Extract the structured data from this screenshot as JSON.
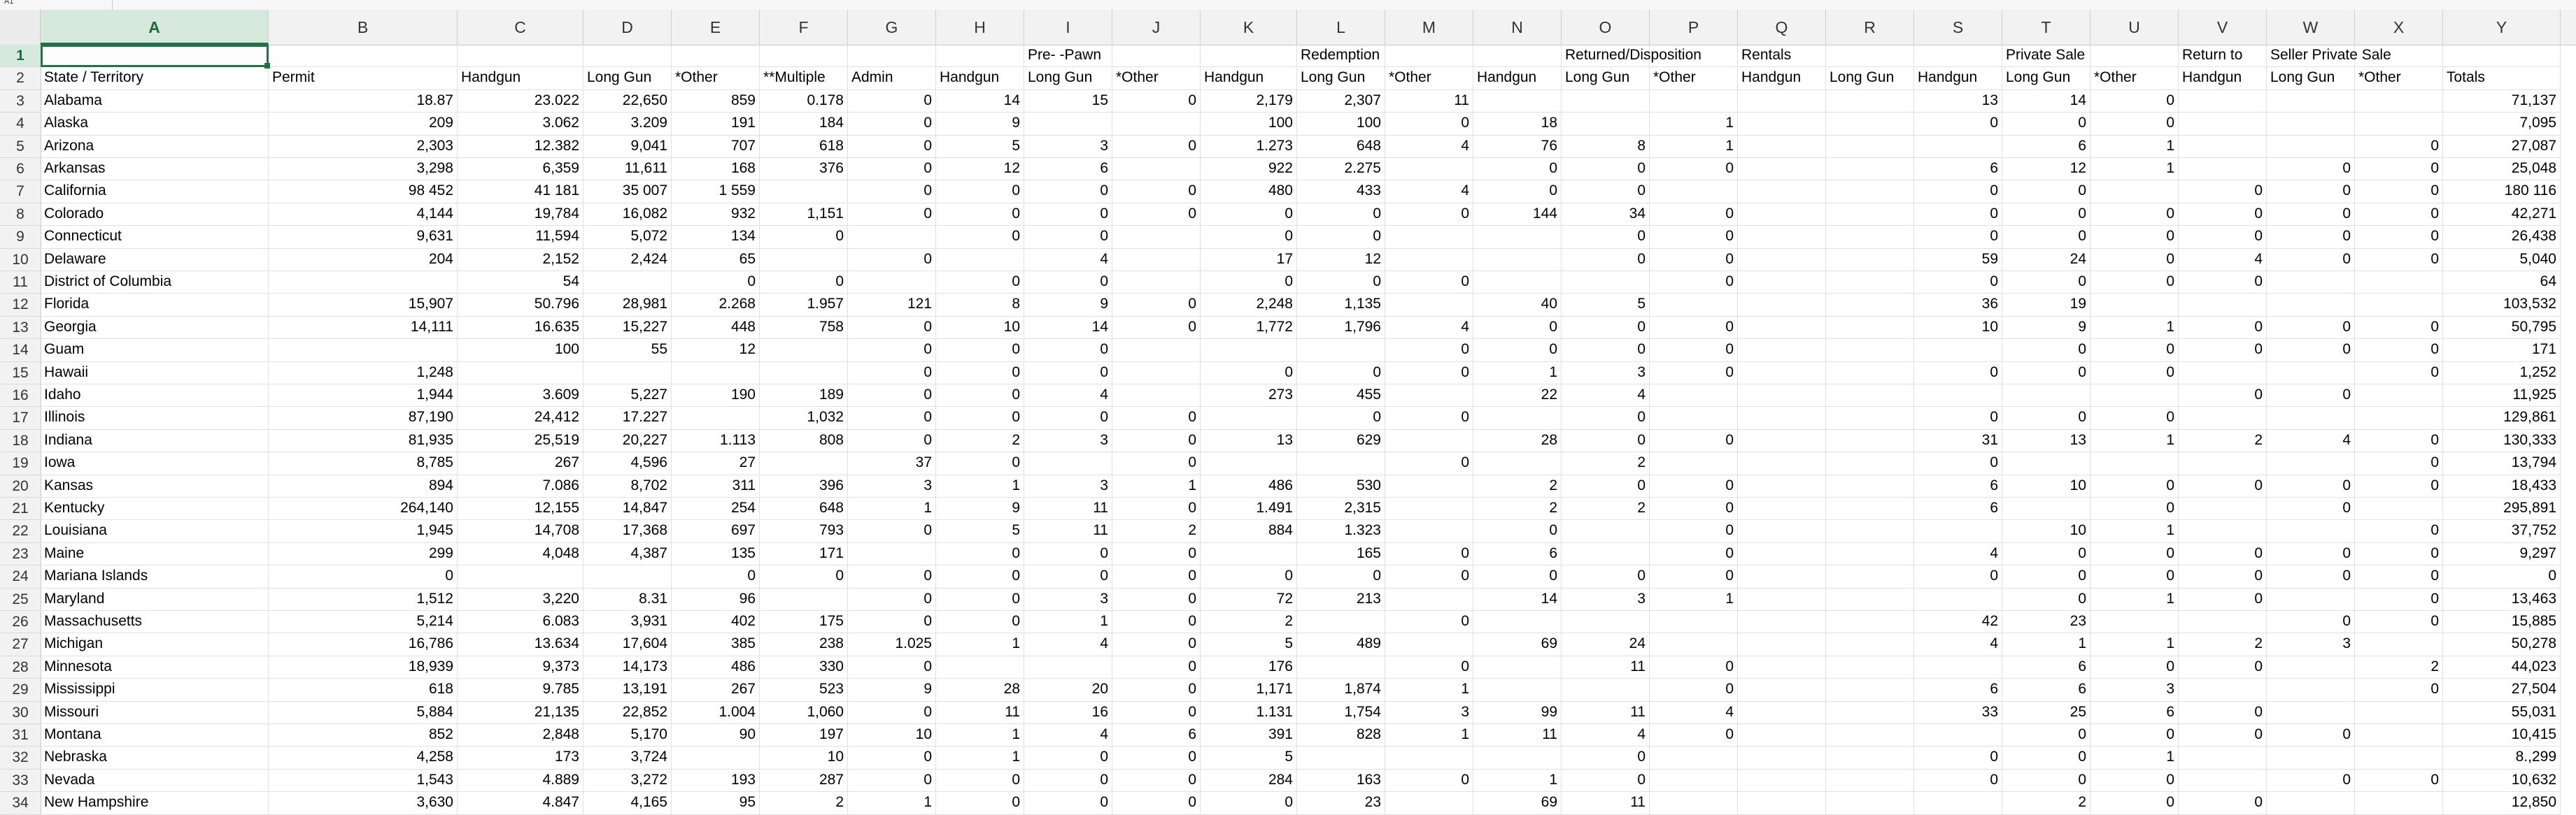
{
  "formula_bar": {
    "name_box": "A1",
    "formula": ""
  },
  "columns": [
    "A",
    "B",
    "C",
    "D",
    "E",
    "F",
    "G",
    "H",
    "I",
    "J",
    "K",
    "L",
    "M",
    "N",
    "O",
    "P",
    "Q",
    "R",
    "S",
    "T",
    "U",
    "V",
    "W",
    "X",
    "Y"
  ],
  "selected_cell": "A1",
  "rows": [
    {
      "n": "1",
      "cells": [
        "",
        "",
        "",
        "",
        "",
        "",
        "",
        "",
        "Pre- -Pawn",
        "",
        "",
        "Redemption",
        "",
        "",
        "Returned/Disposition",
        "",
        "Rentals",
        "",
        "",
        "Private Sale",
        "",
        "Return to",
        "Seller Private Sale",
        "",
        ""
      ]
    },
    {
      "n": "2",
      "cells": [
        "State / Territory",
        "Permit",
        "Handgun",
        "Long Gun",
        "*Other",
        "**Multiple",
        "Admin",
        "Handgun",
        "Long Gun",
        "*Other",
        "Handgun",
        "Long Gun",
        "*Other",
        "Handgun",
        "Long Gun",
        "*Other",
        "Handgun",
        "Long Gun",
        "Handgun",
        "Long Gun",
        "*Other",
        "Handgun",
        "Long Gun",
        "*Other",
        "Totals"
      ]
    },
    {
      "n": "3",
      "cells": [
        "Alabama",
        "18.87",
        "23.022",
        "22,650",
        "859",
        "0.178",
        "0",
        "14",
        "15",
        "0",
        "2,179",
        "2,307",
        "11",
        "",
        "",
        "",
        "",
        "",
        "13",
        "14",
        "0",
        "",
        "",
        "",
        "71,137"
      ]
    },
    {
      "n": "4",
      "cells": [
        "Alaska",
        "209",
        "3.062",
        "3.209",
        "191",
        "184",
        "0",
        "9",
        "",
        "",
        "100",
        "100",
        "0",
        "18",
        "",
        "1",
        "",
        "",
        "0",
        "0",
        "0",
        "",
        "",
        "",
        "7,095"
      ]
    },
    {
      "n": "5",
      "cells": [
        "Arizona",
        "2,303",
        "12.382",
        "9,041",
        "707",
        "618",
        "0",
        "5",
        "3",
        "0",
        "1.273",
        "648",
        "4",
        "76",
        "8",
        "1",
        "",
        "",
        "",
        "6",
        "1",
        "",
        "",
        "0",
        "27,087"
      ]
    },
    {
      "n": "6",
      "cells": [
        "Arkansas",
        "3,298",
        "6,359",
        "11,611",
        "168",
        "376",
        "0",
        "12",
        "6",
        "",
        "922",
        "2.275",
        "",
        "0",
        "0",
        "0",
        "",
        "",
        "6",
        "12",
        "1",
        "",
        "0",
        "0",
        "25,048"
      ]
    },
    {
      "n": "7",
      "cells": [
        "California",
        "98 452",
        "41 181",
        "35 007",
        "1 559",
        "",
        "0",
        "0",
        "0",
        "0",
        "480",
        "433",
        "4",
        "0",
        "0",
        "",
        "",
        "",
        "0",
        "0",
        "",
        "0",
        "0",
        "0",
        "180 116"
      ]
    },
    {
      "n": "8",
      "cells": [
        "Colorado",
        "4,144",
        "19,784",
        "16,082",
        "932",
        "1,151",
        "0",
        "0",
        "0",
        "0",
        "0",
        "0",
        "0",
        "144",
        "34",
        "0",
        "",
        "",
        "0",
        "0",
        "0",
        "0",
        "0",
        "0",
        "42,271"
      ]
    },
    {
      "n": "9",
      "cells": [
        "Connecticut",
        "9,631",
        "11,594",
        "5,072",
        "134",
        "0",
        "",
        "0",
        "0",
        "",
        "0",
        "0",
        "",
        "",
        "0",
        "0",
        "",
        "",
        "0",
        "0",
        "0",
        "0",
        "0",
        "0",
        "26,438"
      ]
    },
    {
      "n": "10",
      "cells": [
        "Delaware",
        "204",
        "2,152",
        "2,424",
        "65",
        "",
        "0",
        "",
        "4",
        "",
        "17",
        "12",
        "",
        "",
        "0",
        "0",
        "",
        "",
        "59",
        "24",
        "0",
        "4",
        "0",
        "0",
        "5,040"
      ]
    },
    {
      "n": "11",
      "cells": [
        "District of Columbia",
        "",
        "54",
        "",
        "0",
        "0",
        "",
        "0",
        "0",
        "",
        "0",
        "0",
        "0",
        "",
        "",
        "0",
        "",
        "",
        "0",
        "0",
        "0",
        "0",
        "",
        "",
        "64"
      ]
    },
    {
      "n": "12",
      "cells": [
        "Florida",
        "15,907",
        "50.796",
        "28,981",
        "2.268",
        "1.957",
        "121",
        "8",
        "9",
        "0",
        "2,248",
        "1,135",
        "",
        "40",
        "5",
        "",
        "",
        "",
        "36",
        "19",
        "",
        "",
        "",
        "",
        "103,532"
      ]
    },
    {
      "n": "13",
      "cells": [
        "Georgia",
        "14,111",
        "16.635",
        "15,227",
        "448",
        "758",
        "0",
        "10",
        "14",
        "0",
        "1,772",
        "1,796",
        "4",
        "0",
        "0",
        "0",
        "",
        "",
        "10",
        "9",
        "1",
        "0",
        "0",
        "0",
        "50,795"
      ]
    },
    {
      "n": "14",
      "cells": [
        "Guam",
        "",
        "100",
        "55",
        "12",
        "",
        "0",
        "0",
        "0",
        "",
        "",
        "",
        "0",
        "0",
        "0",
        "0",
        "",
        "",
        "",
        "0",
        "0",
        "0",
        "0",
        "0",
        "171"
      ]
    },
    {
      "n": "15",
      "cells": [
        "Hawaii",
        "1,248",
        "",
        "",
        "",
        "",
        "0",
        "0",
        "0",
        "",
        "0",
        "0",
        "0",
        "1",
        "3",
        "0",
        "",
        "",
        "0",
        "0",
        "0",
        "",
        "",
        "0",
        "1,252"
      ]
    },
    {
      "n": "16",
      "cells": [
        "Idaho",
        "1,944",
        "3.609",
        "5,227",
        "190",
        "189",
        "0",
        "0",
        "4",
        "",
        "273",
        "455",
        "",
        "22",
        "4",
        "",
        "",
        "",
        "",
        "",
        "",
        "0",
        "0",
        "",
        "11,925"
      ]
    },
    {
      "n": "17",
      "cells": [
        "Illinois",
        "87,190",
        "24,412",
        "17.227",
        "",
        "1,032",
        "0",
        "0",
        "0",
        "0",
        "",
        "0",
        "0",
        "",
        "0",
        "",
        "",
        "",
        "0",
        "0",
        "0",
        "",
        "",
        "",
        "129,861"
      ]
    },
    {
      "n": "18",
      "cells": [
        "Indiana",
        "81,935",
        "25,519",
        "20,227",
        "1.113",
        "808",
        "0",
        "2",
        "3",
        "0",
        "13",
        "629",
        "",
        "28",
        "0",
        "0",
        "",
        "",
        "31",
        "13",
        "1",
        "2",
        "4",
        "0",
        "130,333"
      ]
    },
    {
      "n": "19",
      "cells": [
        "Iowa",
        "8,785",
        "267",
        "4,596",
        "27",
        "",
        "37",
        "0",
        "",
        "0",
        "",
        "",
        "0",
        "",
        "2",
        "",
        "",
        "",
        "0",
        "",
        "",
        "",
        "",
        "0",
        "13,794"
      ]
    },
    {
      "n": "20",
      "cells": [
        "Kansas",
        "894",
        "7.086",
        "8,702",
        "311",
        "396",
        "3",
        "1",
        "3",
        "1",
        "486",
        "530",
        "",
        "2",
        "0",
        "0",
        "",
        "",
        "6",
        "10",
        "0",
        "0",
        "0",
        "0",
        "18,433"
      ]
    },
    {
      "n": "21",
      "cells": [
        "Kentucky",
        "264,140",
        "12,155",
        "14,847",
        "254",
        "648",
        "1",
        "9",
        "11",
        "0",
        "1.491",
        "2,315",
        "",
        "2",
        "2",
        "0",
        "",
        "",
        "6",
        "",
        "0",
        "",
        "0",
        "",
        "295,891"
      ]
    },
    {
      "n": "22",
      "cells": [
        "Louisiana",
        "1,945",
        "14,708",
        "17,368",
        "697",
        "793",
        "0",
        "5",
        "11",
        "2",
        "884",
        "1.323",
        "",
        "0",
        "",
        "0",
        "",
        "",
        "",
        "10",
        "1",
        "",
        "",
        "0",
        "37,752"
      ]
    },
    {
      "n": "23",
      "cells": [
        "Maine",
        "299",
        "4,048",
        "4,387",
        "135",
        "171",
        "",
        "0",
        "0",
        "0",
        "",
        "165",
        "0",
        "6",
        "",
        "0",
        "",
        "",
        "4",
        "0",
        "0",
        "0",
        "0",
        "0",
        "9,297"
      ]
    },
    {
      "n": "24",
      "cells": [
        "Mariana Islands",
        "0",
        "",
        "",
        "0",
        "0",
        "0",
        "0",
        "0",
        "0",
        "0",
        "0",
        "0",
        "0",
        "0",
        "0",
        "",
        "",
        "0",
        "0",
        "0",
        "0",
        "0",
        "0",
        "0"
      ]
    },
    {
      "n": "25",
      "cells": [
        "Maryland",
        "1,512",
        "3,220",
        "8.31",
        "96",
        "",
        "0",
        "0",
        "3",
        "0",
        "72",
        "213",
        "",
        "14",
        "3",
        "1",
        "",
        "",
        "",
        "0",
        "1",
        "0",
        "",
        "0",
        "13,463"
      ]
    },
    {
      "n": "26",
      "cells": [
        "Massachusetts",
        "5,214",
        "6.083",
        "3,931",
        "402",
        "175",
        "0",
        "0",
        "1",
        "0",
        "2",
        "",
        "0",
        "",
        "",
        "",
        "",
        "",
        "42",
        "23",
        "",
        "",
        "0",
        "0",
        "15,885"
      ]
    },
    {
      "n": "27",
      "cells": [
        "Michigan",
        "16,786",
        "13.634",
        "17,604",
        "385",
        "238",
        "1.025",
        "1",
        "4",
        "0",
        "5",
        "489",
        "",
        "69",
        "24",
        "",
        "",
        "",
        "4",
        "1",
        "1",
        "2",
        "3",
        "",
        "50,278"
      ]
    },
    {
      "n": "28",
      "cells": [
        "Minnesota",
        "18,939",
        "9,373",
        "14,173",
        "486",
        "330",
        "0",
        "",
        "",
        "0",
        "176",
        "",
        "0",
        "",
        "11",
        "0",
        "",
        "",
        "",
        "6",
        "0",
        "0",
        "",
        "2",
        "44,023"
      ]
    },
    {
      "n": "29",
      "cells": [
        "Mississippi",
        "618",
        "9.785",
        "13,191",
        "267",
        "523",
        "9",
        "28",
        "20",
        "0",
        "1,171",
        "1,874",
        "1",
        "",
        "",
        "0",
        "",
        "",
        "6",
        "6",
        "3",
        "",
        "",
        "0",
        "27,504"
      ]
    },
    {
      "n": "30",
      "cells": [
        "Missouri",
        "5,884",
        "21,135",
        "22,852",
        "1.004",
        "1,060",
        "0",
        "11",
        "16",
        "0",
        "1.131",
        "1,754",
        "3",
        "99",
        "11",
        "4",
        "",
        "",
        "33",
        "25",
        "6",
        "0",
        "",
        "",
        "55,031"
      ]
    },
    {
      "n": "31",
      "cells": [
        "Montana",
        "852",
        "2,848",
        "5,170",
        "90",
        "197",
        "10",
        "1",
        "4",
        "6",
        "391",
        "828",
        "1",
        "11",
        "4",
        "0",
        "",
        "",
        "",
        "0",
        "0",
        "0",
        "0",
        "",
        "10,415"
      ]
    },
    {
      "n": "32",
      "cells": [
        "Nebraska",
        "4,258",
        "173",
        "3,724",
        "",
        "10",
        "0",
        "1",
        "0",
        "0",
        "5",
        "",
        "",
        "",
        "0",
        "",
        "",
        "",
        "0",
        "0",
        "1",
        "",
        "",
        "",
        "8.,299"
      ]
    },
    {
      "n": "33",
      "cells": [
        "Nevada",
        "1,543",
        "4.889",
        "3,272",
        "193",
        "287",
        "0",
        "0",
        "0",
        "0",
        "284",
        "163",
        "0",
        "1",
        "0",
        "",
        "",
        "",
        "0",
        "0",
        "0",
        "",
        "0",
        "0",
        "10,632"
      ]
    },
    {
      "n": "34",
      "cells": [
        "New Hampshire",
        "3,630",
        "4.847",
        "4,165",
        "95",
        "2",
        "1",
        "0",
        "0",
        "0",
        "0",
        "23",
        "",
        "69",
        "11",
        "",
        "",
        "",
        "",
        "2",
        "0",
        "0",
        "",
        "",
        "12,850"
      ]
    }
  ]
}
